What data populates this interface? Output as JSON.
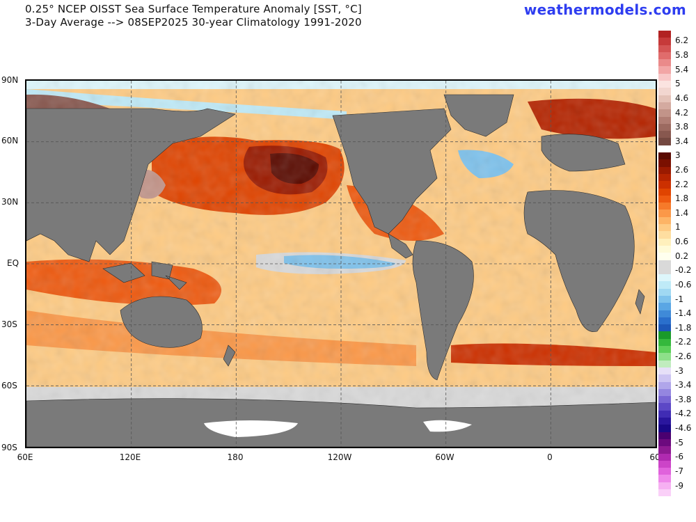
{
  "header": {
    "title_line1": "0.25° NCEP OISST Sea Surface Temperature Anomaly [SST, °C]",
    "title_line2": "3-Day Average --> 08SEP2025   30-year Climatology 1991-2020",
    "brand": "weathermodels.com"
  },
  "axes": {
    "lat_labels": [
      "90N",
      "60N",
      "30N",
      "EQ",
      "30S",
      "60S",
      "90S"
    ],
    "lon_labels": [
      "60E",
      "120E",
      "180",
      "120W",
      "60W",
      "0",
      "60"
    ]
  },
  "colorbar": {
    "steps": [
      {
        "label": "",
        "color": "#b22222"
      },
      {
        "label": "6.2",
        "color": "#c63a3a"
      },
      {
        "label": "",
        "color": "#d45454"
      },
      {
        "label": "5.8",
        "color": "#e06c6c"
      },
      {
        "label": "",
        "color": "#ea8a8a"
      },
      {
        "label": "5.4",
        "color": "#f2a6a6"
      },
      {
        "label": "",
        "color": "#f8c8c8"
      },
      {
        "label": "5",
        "color": "#fbe3e0"
      },
      {
        "label": "",
        "color": "#f2d6d0"
      },
      {
        "label": "4.6",
        "color": "#e4c2b8"
      },
      {
        "label": "",
        "color": "#d4aaa0"
      },
      {
        "label": "4.2",
        "color": "#c29489"
      },
      {
        "label": "",
        "color": "#b07e74"
      },
      {
        "label": "3.8",
        "color": "#9c6a60"
      },
      {
        "label": "",
        "color": "#88584f"
      },
      {
        "label": "3.4",
        "color": "#744840"
      },
      {
        "label": "",
        "color": "#ffffff"
      },
      {
        "label": "3",
        "color": "#5a0a00"
      },
      {
        "label": "",
        "color": "#7a1000"
      },
      {
        "label": "2.6",
        "color": "#9a1a00"
      },
      {
        "label": "",
        "color": "#b52400"
      },
      {
        "label": "2.2",
        "color": "#cc3000"
      },
      {
        "label": "",
        "color": "#e04400"
      },
      {
        "label": "1.8",
        "color": "#ee5a10"
      },
      {
        "label": "",
        "color": "#f67a2a"
      },
      {
        "label": "1.4",
        "color": "#fb9848"
      },
      {
        "label": "",
        "color": "#fdb466"
      },
      {
        "label": "1",
        "color": "#fecb84"
      },
      {
        "label": "",
        "color": "#fedea0"
      },
      {
        "label": "0.6",
        "color": "#fff0bc"
      },
      {
        "label": "",
        "color": "#fffbd8"
      },
      {
        "label": "0.2",
        "color": "#ffffee"
      },
      {
        "label": "",
        "color": "#d9d9d9"
      },
      {
        "label": "-0.2",
        "color": "#d9d9d9"
      },
      {
        "label": "",
        "color": "#ddf6fb"
      },
      {
        "label": "-0.6",
        "color": "#bfeaf7"
      },
      {
        "label": "",
        "color": "#a0d8f2"
      },
      {
        "label": "-1",
        "color": "#7ec2ec"
      },
      {
        "label": "",
        "color": "#5aa6e4"
      },
      {
        "label": "-1.4",
        "color": "#3f8ad8"
      },
      {
        "label": "",
        "color": "#2a6fcc"
      },
      {
        "label": "-1.8",
        "color": "#1d58b8"
      },
      {
        "label": "",
        "color": "#1a9a2a"
      },
      {
        "label": "-2.2",
        "color": "#34b83c"
      },
      {
        "label": "",
        "color": "#5cd05a"
      },
      {
        "label": "-2.6",
        "color": "#8ee08a"
      },
      {
        "label": "",
        "color": "#c0ecbe"
      },
      {
        "label": "-3",
        "color": "#e6e0f8"
      },
      {
        "label": "",
        "color": "#ccc4f2"
      },
      {
        "label": "-3.4",
        "color": "#b0a6ea"
      },
      {
        "label": "",
        "color": "#9486e0"
      },
      {
        "label": "-3.8",
        "color": "#7866d4"
      },
      {
        "label": "",
        "color": "#5c48c6"
      },
      {
        "label": "-4.2",
        "color": "#402cb4"
      },
      {
        "label": "",
        "color": "#2a169e"
      },
      {
        "label": "-4.6",
        "color": "#1a0888"
      },
      {
        "label": "",
        "color": "#4a0070"
      },
      {
        "label": "-5",
        "color": "#6c0a7e"
      },
      {
        "label": "",
        "color": "#8e1a92"
      },
      {
        "label": "-6",
        "color": "#b02ab0"
      },
      {
        "label": "",
        "color": "#cc44c8"
      },
      {
        "label": "-7",
        "color": "#e062dc"
      },
      {
        "label": "",
        "color": "#ee88ea"
      },
      {
        "label": "-9",
        "color": "#f6b0f2"
      },
      {
        "label": "",
        "color": "#fad0f8"
      }
    ]
  },
  "colors": {
    "land": "#7a7a7a",
    "ice": "#ffffff",
    "neutral_sea": "#d9d9d9"
  }
}
